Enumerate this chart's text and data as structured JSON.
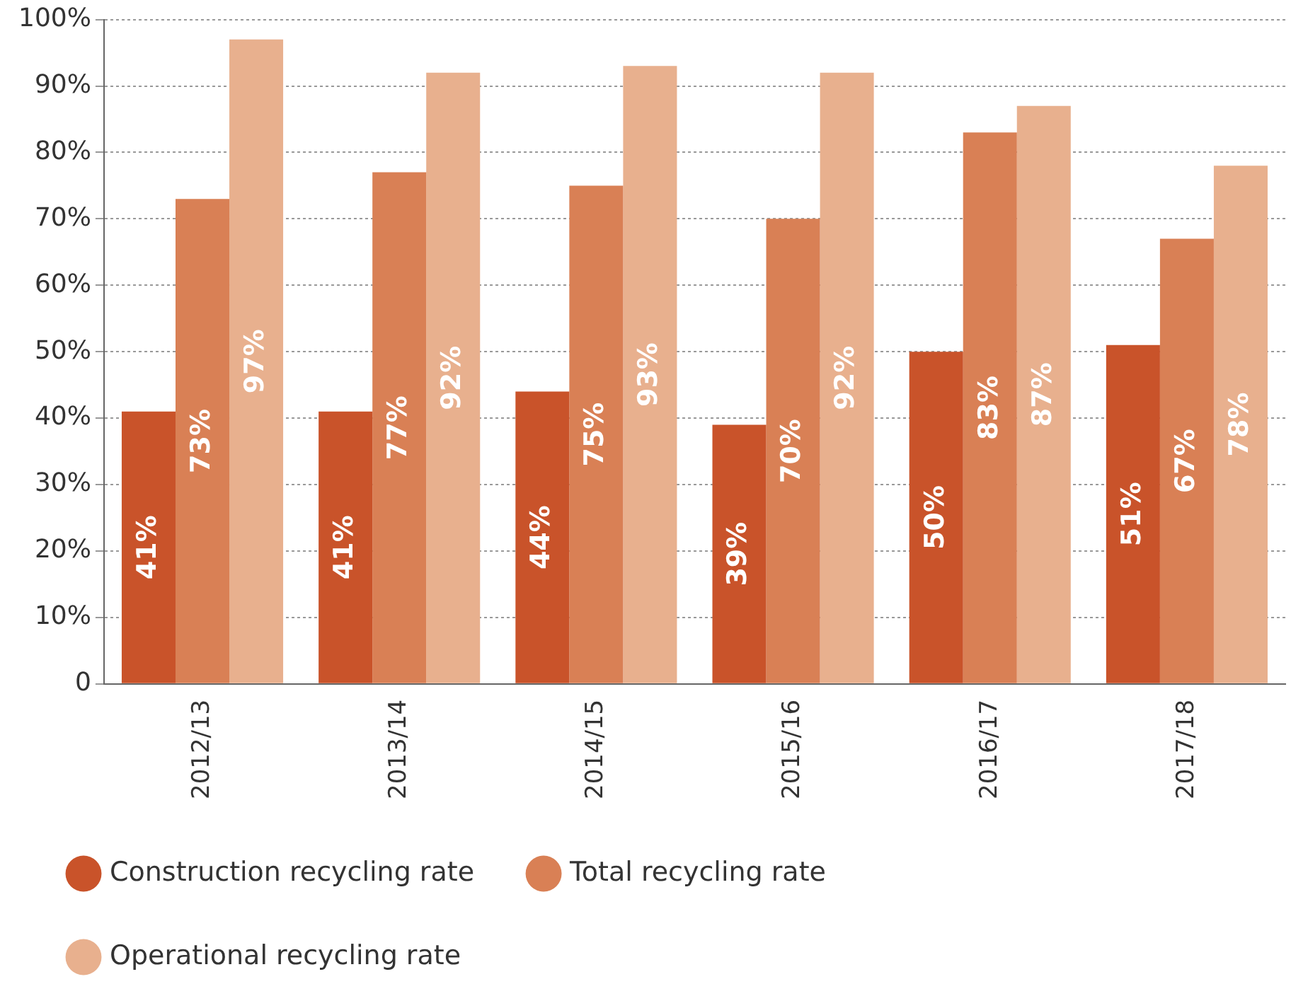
{
  "chart_data": {
    "type": "bar",
    "categories": [
      "2012/13",
      "2013/14",
      "2014/15",
      "2015/16",
      "2016/17",
      "2017/18"
    ],
    "series": [
      {
        "name": "Construction recycling rate",
        "color": "#c9532a",
        "values": [
          41,
          41,
          44,
          39,
          50,
          51
        ],
        "value_labels": [
          "41%",
          "41%",
          "44%",
          "39%",
          "50%",
          "51%"
        ]
      },
      {
        "name": "Total recycling rate",
        "color": "#d98055",
        "values": [
          73,
          77,
          75,
          70,
          83,
          67
        ],
        "value_labels": [
          "73%",
          "77%",
          "75%",
          "70%",
          "83%",
          "67%"
        ]
      },
      {
        "name": "Operational recycling rate",
        "color": "#e8b08e",
        "values": [
          97,
          92,
          93,
          92,
          87,
          78
        ],
        "value_labels": [
          "97%",
          "92%",
          "93%",
          "92%",
          "87%",
          "78%"
        ]
      }
    ],
    "ylim": [
      0,
      100
    ],
    "yticks": [
      0,
      {
        "value": 10,
        "label": "10%"
      },
      {
        "value": 20,
        "label": "20%"
      },
      {
        "value": 30,
        "label": "30%"
      },
      {
        "value": 40,
        "label": "40%"
      },
      {
        "value": 50,
        "label": "50%"
      },
      {
        "value": 60,
        "label": "60%"
      },
      {
        "value": 70,
        "label": "70%"
      },
      {
        "value": 80,
        "label": "80%"
      },
      {
        "value": 90,
        "label": "90%"
      },
      {
        "value": 100,
        "label": "100%"
      }
    ],
    "grid": "y",
    "legend": "bottom"
  }
}
